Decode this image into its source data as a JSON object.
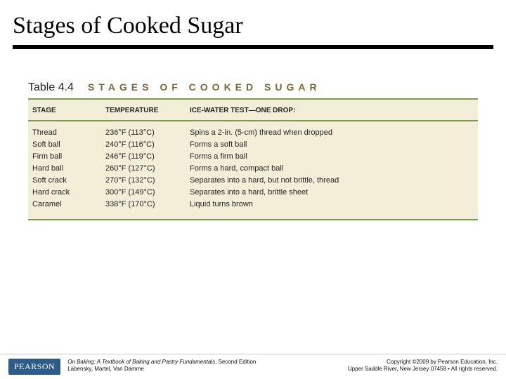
{
  "slide": {
    "title": "Stages of Cooked Sugar"
  },
  "table": {
    "number": "Table 4.4",
    "title": "STAGES OF COOKED SUGAR",
    "columns": {
      "stage": "STAGE",
      "temperature": "TEMPERATURE",
      "test": "ICE-WATER TEST—ONE DROP:"
    },
    "rows": [
      {
        "stage": "Thread",
        "temp": "236°F (113°C)",
        "test": "Spins a 2-in. (5-cm) thread when dropped"
      },
      {
        "stage": "Soft ball",
        "temp": "240°F (116°C)",
        "test": "Forms a soft ball"
      },
      {
        "stage": "Firm ball",
        "temp": "246°F (119°C)",
        "test": "Forms a firm ball"
      },
      {
        "stage": "Hard ball",
        "temp": "260°F (127°C)",
        "test": "Forms a hard, compact ball"
      },
      {
        "stage": "Soft crack",
        "temp": "270°F (132°C)",
        "test": "Separates into a hard, but not brittle, thread"
      },
      {
        "stage": "Hard crack",
        "temp": "300°F (149°C)",
        "test": "Separates into a hard, brittle sheet"
      },
      {
        "stage": "Caramel",
        "temp": "338°F (170°C)",
        "test": "Liquid turns brown"
      }
    ]
  },
  "footer": {
    "pearson": "PEARSON",
    "book_title": "On Baking: A Textbook of Baking and Pastry Fundamentals",
    "edition": ", Second Edition",
    "authors": "Labensky, Martel, Van Damme",
    "copyright": "Copyright ©2009 by Pearson Education, Inc.",
    "address": "Upper Saddle River, New Jersey 07458 • All rights reserved."
  },
  "colors": {
    "rule_green": "#7a9a4d",
    "table_bg": "#f3eed7",
    "title_olive": "#7a6a3a",
    "pearson_bg": "#2e5c8a"
  }
}
